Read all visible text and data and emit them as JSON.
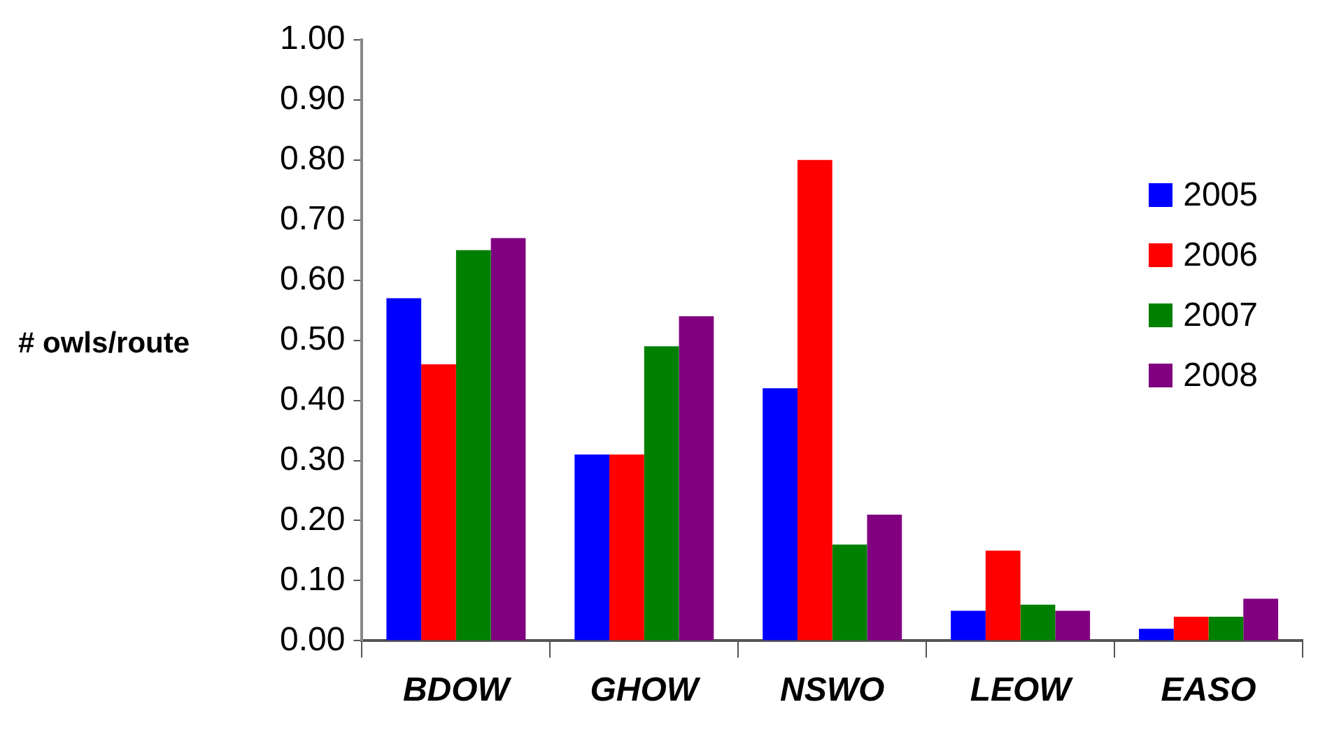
{
  "chart_data": {
    "type": "bar",
    "ylabel": "# owls/route",
    "categories": [
      "BDOW",
      "GHOW",
      "NSWO",
      "LEOW",
      "EASO"
    ],
    "series": [
      {
        "name": "2005",
        "color": "#0000ff",
        "values": [
          0.57,
          0.31,
          0.42,
          0.05,
          0.02
        ]
      },
      {
        "name": "2006",
        "color": "#ff0000",
        "values": [
          0.46,
          0.31,
          0.8,
          0.15,
          0.04
        ]
      },
      {
        "name": "2007",
        "color": "#008000",
        "values": [
          0.65,
          0.49,
          0.16,
          0.06,
          0.04
        ]
      },
      {
        "name": "2008",
        "color": "#800080",
        "values": [
          0.67,
          0.54,
          0.21,
          0.05,
          0.07
        ]
      }
    ],
    "ylim": [
      0,
      1
    ],
    "yticks": [
      {
        "value": 0,
        "label": "0.00"
      },
      {
        "value": 0.1,
        "label": "0.10"
      },
      {
        "value": 0.2,
        "label": "0.20"
      },
      {
        "value": 0.3,
        "label": "0.30"
      },
      {
        "value": 0.4,
        "label": "0.40"
      },
      {
        "value": 0.5,
        "label": "0.50"
      },
      {
        "value": 0.6,
        "label": "0.60"
      },
      {
        "value": 0.7,
        "label": "0.70"
      },
      {
        "value": 0.8,
        "label": "0.80"
      },
      {
        "value": 0.9,
        "label": "0.90"
      },
      {
        "value": 1,
        "label": "1.00"
      }
    ],
    "grid": false,
    "legend": "top right"
  }
}
